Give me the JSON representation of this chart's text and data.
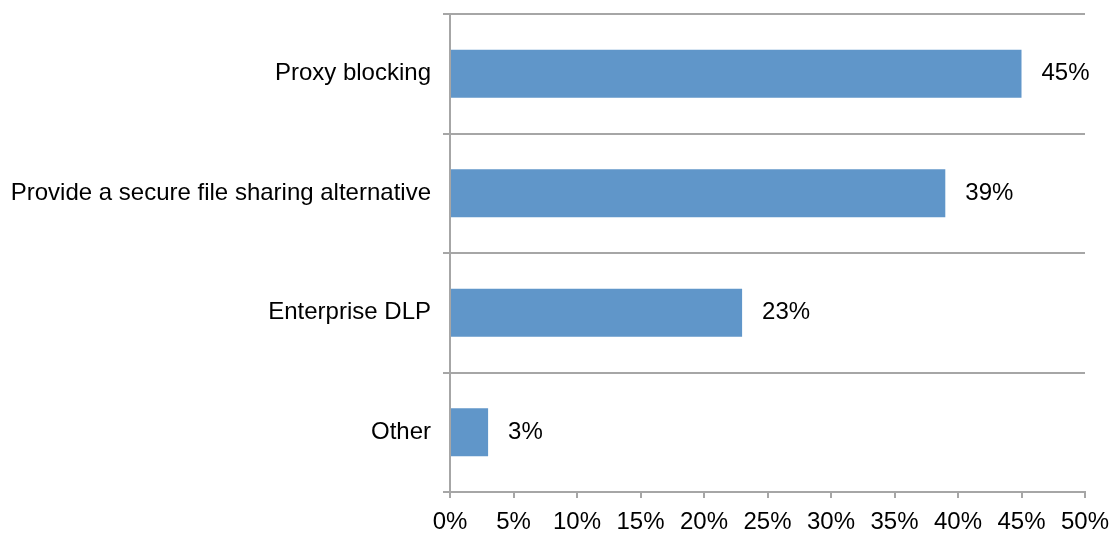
{
  "chart_data": {
    "type": "bar",
    "orientation": "horizontal",
    "categories": [
      "Proxy blocking",
      "Provide a secure file sharing alternative",
      "Enterprise DLP",
      "Other"
    ],
    "values": [
      45,
      39,
      23,
      3
    ],
    "color": "#6096c9",
    "value_labels": [
      "45%",
      "39%",
      "23%",
      "3%"
    ],
    "xlim": [
      0,
      50
    ],
    "xticks": [
      {
        "value": 0,
        "label": "0%"
      },
      {
        "value": 5,
        "label": "5%"
      },
      {
        "value": 10,
        "label": "10%"
      },
      {
        "value": 15,
        "label": "15%"
      },
      {
        "value": 20,
        "label": "20%"
      },
      {
        "value": 25,
        "label": "25%"
      },
      {
        "value": 30,
        "label": "30%"
      },
      {
        "value": 35,
        "label": "35%"
      },
      {
        "value": 40,
        "label": "40%"
      },
      {
        "value": 45,
        "label": "45%"
      },
      {
        "value": 50,
        "label": "50%"
      }
    ],
    "grid": "y",
    "legend": false
  }
}
